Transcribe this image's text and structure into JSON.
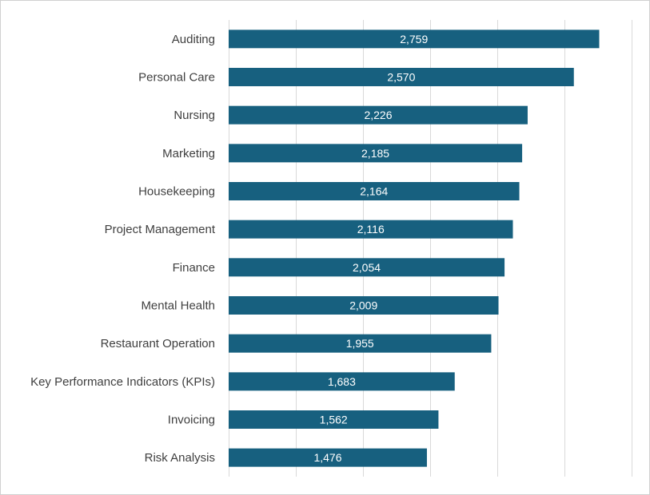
{
  "chart_data": {
    "type": "bar",
    "orientation": "horizontal",
    "categories": [
      "Auditing",
      "Personal Care",
      "Nursing",
      "Marketing",
      "Housekeeping",
      "Project Management",
      "Finance",
      "Mental Health",
      "Restaurant Operation",
      "Key Performance Indicators (KPIs)",
      "Invoicing",
      "Risk Analysis"
    ],
    "values": [
      2759,
      2570,
      2226,
      2185,
      2164,
      2116,
      2054,
      2009,
      1955,
      1683,
      1562,
      1476
    ],
    "value_labels": [
      "2,759",
      "2,570",
      "2,226",
      "2,185",
      "2,164",
      "2,116",
      "2,054",
      "2,009",
      "1,955",
      "1,683",
      "1,562",
      "1,476"
    ],
    "xlim": [
      0,
      3000
    ],
    "gridlines_at": [
      0,
      500,
      1000,
      1500,
      2000,
      2500,
      3000
    ],
    "grid": true,
    "data_labels_inside": true,
    "bar_color": "#17607f",
    "title": "",
    "xlabel": "",
    "ylabel": ""
  }
}
